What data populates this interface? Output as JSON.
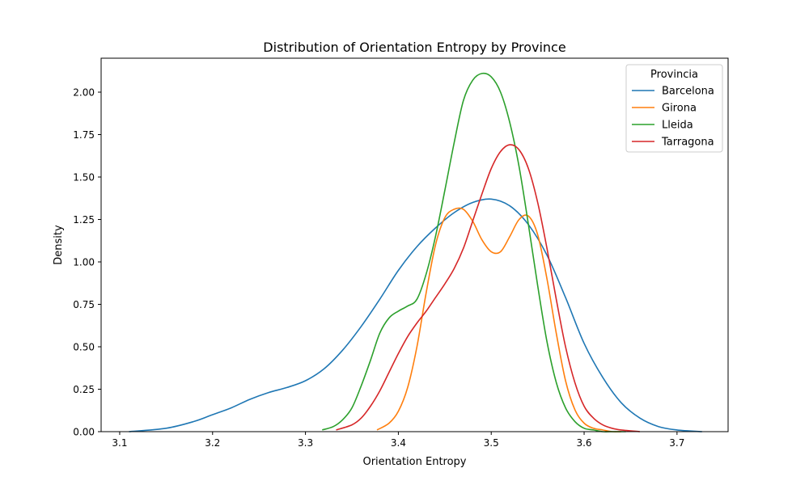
{
  "chart_data": {
    "type": "line",
    "title": "Distribution of Orientation Entropy by Province",
    "xlabel": "Orientation Entropy",
    "ylabel": "Density",
    "xlim": [
      3.08,
      3.755
    ],
    "ylim": [
      0,
      2.2
    ],
    "xticks": [
      3.1,
      3.2,
      3.3,
      3.4,
      3.5,
      3.6,
      3.7
    ],
    "xtick_labels": [
      "3.1",
      "3.2",
      "3.3",
      "3.4",
      "3.5",
      "3.6",
      "3.7"
    ],
    "yticks": [
      0,
      0.25,
      0.5,
      0.75,
      1.0,
      1.25,
      1.5,
      1.75,
      2.0
    ],
    "ytick_labels": [
      "0.00",
      "0.25",
      "0.50",
      "0.75",
      "1.00",
      "1.25",
      "1.50",
      "1.75",
      "2.00"
    ],
    "grid": false,
    "legend": {
      "title": "Provincia",
      "position": "top-right"
    },
    "series": [
      {
        "name": "Barcelona",
        "color": "#1f77b4",
        "x": [
          3.11,
          3.15,
          3.18,
          3.2,
          3.22,
          3.24,
          3.26,
          3.28,
          3.3,
          3.32,
          3.34,
          3.36,
          3.38,
          3.4,
          3.42,
          3.44,
          3.46,
          3.48,
          3.5,
          3.52,
          3.54,
          3.56,
          3.58,
          3.6,
          3.62,
          3.64,
          3.66,
          3.68,
          3.7,
          3.727
        ],
        "y": [
          0.0,
          0.02,
          0.06,
          0.1,
          0.14,
          0.19,
          0.23,
          0.26,
          0.3,
          0.37,
          0.48,
          0.62,
          0.78,
          0.95,
          1.09,
          1.2,
          1.29,
          1.35,
          1.37,
          1.33,
          1.22,
          1.04,
          0.79,
          0.52,
          0.32,
          0.17,
          0.08,
          0.03,
          0.01,
          0.0
        ]
      },
      {
        "name": "Girona",
        "color": "#ff7f0e",
        "x": [
          3.377,
          3.39,
          3.4,
          3.41,
          3.42,
          3.43,
          3.44,
          3.45,
          3.46,
          3.47,
          3.48,
          3.49,
          3.5,
          3.51,
          3.52,
          3.53,
          3.54,
          3.55,
          3.56,
          3.57,
          3.58,
          3.59,
          3.6,
          3.61,
          3.62,
          3.63,
          3.64
        ],
        "y": [
          0.01,
          0.05,
          0.12,
          0.26,
          0.5,
          0.82,
          1.1,
          1.26,
          1.31,
          1.31,
          1.24,
          1.13,
          1.06,
          1.06,
          1.15,
          1.25,
          1.27,
          1.16,
          0.9,
          0.58,
          0.3,
          0.13,
          0.05,
          0.02,
          0.01,
          0.0,
          0.0
        ]
      },
      {
        "name": "Lleida",
        "color": "#2ca02c",
        "x": [
          3.318,
          3.33,
          3.34,
          3.35,
          3.36,
          3.37,
          3.38,
          3.39,
          3.4,
          3.41,
          3.42,
          3.43,
          3.44,
          3.45,
          3.46,
          3.47,
          3.48,
          3.49,
          3.5,
          3.51,
          3.52,
          3.53,
          3.54,
          3.55,
          3.56,
          3.57,
          3.58,
          3.59,
          3.6,
          3.61,
          3.62,
          3.63,
          3.645
        ],
        "y": [
          0.01,
          0.03,
          0.07,
          0.14,
          0.27,
          0.42,
          0.58,
          0.67,
          0.71,
          0.74,
          0.78,
          0.93,
          1.15,
          1.42,
          1.7,
          1.95,
          2.07,
          2.11,
          2.09,
          2.0,
          1.82,
          1.56,
          1.22,
          0.86,
          0.53,
          0.29,
          0.14,
          0.06,
          0.02,
          0.01,
          0.0,
          0.0,
          0.0
        ]
      },
      {
        "name": "Tarragona",
        "color": "#d62728",
        "x": [
          3.333,
          3.35,
          3.36,
          3.37,
          3.38,
          3.39,
          3.4,
          3.41,
          3.42,
          3.43,
          3.44,
          3.45,
          3.46,
          3.47,
          3.48,
          3.49,
          3.5,
          3.51,
          3.52,
          3.53,
          3.54,
          3.55,
          3.56,
          3.57,
          3.58,
          3.59,
          3.6,
          3.61,
          3.62,
          3.63,
          3.64,
          3.66
        ],
        "y": [
          0.01,
          0.04,
          0.08,
          0.15,
          0.24,
          0.35,
          0.46,
          0.56,
          0.64,
          0.71,
          0.79,
          0.87,
          0.96,
          1.08,
          1.24,
          1.4,
          1.55,
          1.65,
          1.69,
          1.66,
          1.55,
          1.35,
          1.08,
          0.78,
          0.5,
          0.29,
          0.15,
          0.08,
          0.04,
          0.02,
          0.01,
          0.0
        ]
      }
    ]
  }
}
